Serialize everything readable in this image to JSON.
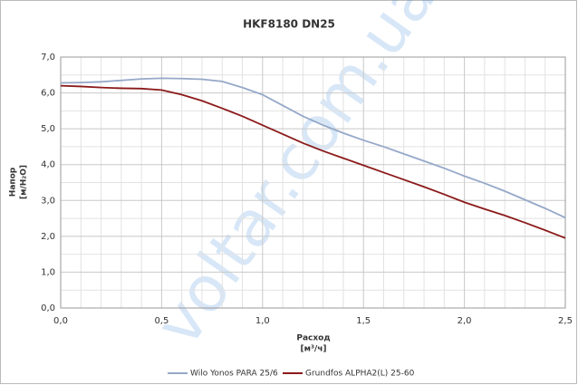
{
  "chart_data": {
    "type": "line",
    "title": "HKF8180 DN25",
    "watermark": "voltar.com.ua",
    "x_label": [
      "Расход",
      "[м³/ч]"
    ],
    "y_label": [
      "Напор",
      "[м/H₂O]"
    ],
    "x": [
      0,
      0.1,
      0.2,
      0.3,
      0.4,
      0.5,
      0.6,
      0.7,
      0.8,
      0.9,
      1.0,
      1.1,
      1.2,
      1.3,
      1.4,
      1.5,
      1.6,
      1.7,
      1.8,
      1.9,
      2.0,
      2.1,
      2.2,
      2.3,
      2.4,
      2.5
    ],
    "series": [
      {
        "name": "Wilo Yonos PARA 25/6",
        "color": "#95a8c8",
        "values": [
          6.28,
          6.29,
          6.31,
          6.35,
          6.39,
          6.41,
          6.4,
          6.38,
          6.32,
          6.15,
          5.95,
          5.65,
          5.35,
          5.1,
          4.88,
          4.68,
          4.5,
          4.3,
          4.1,
          3.9,
          3.68,
          3.48,
          3.26,
          3.02,
          2.78,
          2.52
        ]
      },
      {
        "name": "Grundfos ALPHA2(L) 25-60",
        "color": "#8b1a1a",
        "values": [
          6.2,
          6.18,
          6.15,
          6.13,
          6.12,
          6.08,
          5.95,
          5.78,
          5.57,
          5.35,
          5.1,
          4.85,
          4.6,
          4.38,
          4.18,
          3.98,
          3.78,
          3.58,
          3.38,
          3.17,
          2.95,
          2.76,
          2.58,
          2.38,
          2.17,
          1.95
        ]
      }
    ],
    "xlim": [
      0,
      2.5
    ],
    "xticks": [
      {
        "value": 0,
        "label": "0,0"
      },
      {
        "value": 0.5,
        "label": "0,5"
      },
      {
        "value": 1,
        "label": "1,0"
      },
      {
        "value": 1.5,
        "label": "1,5"
      },
      {
        "value": 2,
        "label": "2,0"
      },
      {
        "value": 2.5,
        "label": "2,5"
      }
    ],
    "ylim": [
      0,
      7
    ],
    "yticks": [
      {
        "value": 0,
        "label": "0,0"
      },
      {
        "value": 1,
        "label": "1,0"
      },
      {
        "value": 2,
        "label": "2,0"
      },
      {
        "value": 3,
        "label": "3,0"
      },
      {
        "value": 4,
        "label": "4,0"
      },
      {
        "value": 5,
        "label": "5,0"
      },
      {
        "value": 6,
        "label": "6,0"
      },
      {
        "value": 7,
        "label": "7,0"
      }
    ],
    "grid": true,
    "legend": "bottom"
  }
}
